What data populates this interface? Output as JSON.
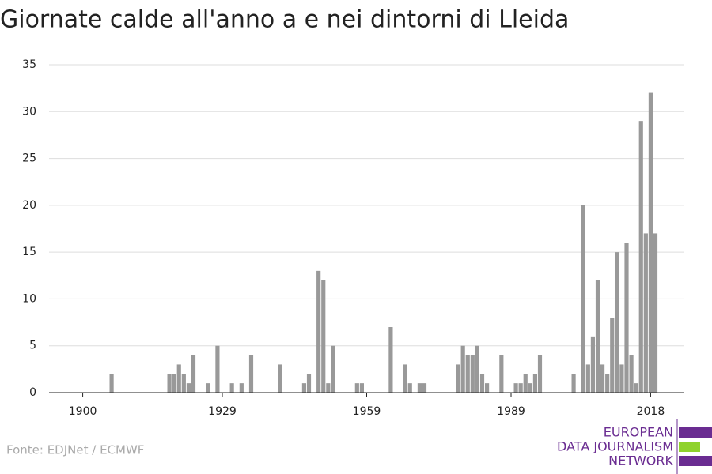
{
  "chart_data": {
    "type": "bar",
    "title": "Giornate calde all'anno a e nei dintorni di Lleida",
    "x": [
      1906,
      1918,
      1919,
      1920,
      1921,
      1922,
      1923,
      1926,
      1928,
      1931,
      1933,
      1935,
      1941,
      1946,
      1947,
      1949,
      1950,
      1951,
      1952,
      1957,
      1958,
      1964,
      1967,
      1968,
      1970,
      1971,
      1978,
      1979,
      1980,
      1981,
      1982,
      1983,
      1984,
      1987,
      1990,
      1991,
      1992,
      1993,
      1994,
      1995,
      2002,
      2004,
      2005,
      2006,
      2007,
      2008,
      2009,
      2010,
      2011,
      2012,
      2013,
      2014,
      2015,
      2016,
      2017,
      2018,
      2019
    ],
    "values": [
      2,
      2,
      2,
      3,
      2,
      1,
      4,
      1,
      5,
      1,
      1,
      4,
      3,
      1,
      2,
      13,
      12,
      1,
      5,
      1,
      1,
      7,
      3,
      1,
      1,
      1,
      3,
      5,
      4,
      4,
      5,
      2,
      1,
      4,
      1,
      1,
      2,
      1,
      2,
      4,
      2,
      20,
      3,
      6,
      12,
      3,
      2,
      8,
      15,
      3,
      16,
      4,
      1,
      29,
      17,
      32,
      17
    ],
    "color": "#999999",
    "xlim": [
      1893,
      2025
    ],
    "xticks": [
      1900,
      1929,
      1959,
      1989,
      2018
    ],
    "ylim": [
      0,
      35
    ],
    "yticks": [
      0,
      5,
      10,
      15,
      20,
      25,
      30,
      35
    ],
    "grid": true,
    "source": "Fonte: EDJNet / ECMWF",
    "logo": [
      "EUROPEAN",
      "DATA JOURNALISM",
      "NETWORK"
    ]
  }
}
